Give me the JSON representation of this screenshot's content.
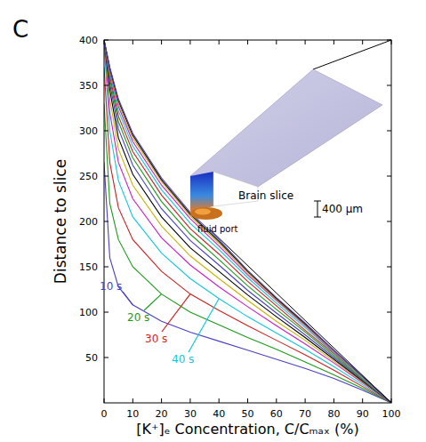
{
  "chart_data": {
    "type": "line",
    "panel_label": "C",
    "xlabel": "[K⁺]ₑ Concentration, C/Cₘₐₓ (%)",
    "ylabel": "Distance to slice",
    "annotations": [
      "Brain slice",
      "400 μm",
      "fluid port"
    ],
    "xlim": [
      0,
      100
    ],
    "ylim": [
      0,
      400
    ],
    "xticks": [
      0,
      10,
      20,
      30,
      40,
      50,
      60,
      70,
      80,
      90,
      100
    ],
    "yticks": [
      50,
      100,
      150,
      200,
      250,
      300,
      350,
      400
    ],
    "x": [
      0,
      2,
      5,
      10,
      20,
      30,
      40,
      50,
      60,
      70,
      80,
      90,
      100
    ],
    "series": [
      {
        "name": "10 s",
        "color": "#4b3fc4",
        "values": [
          265,
          160,
          128,
          108,
          90,
          78,
          68,
          58,
          48,
          38,
          27,
          14,
          0
        ]
      },
      {
        "name": "20 s",
        "color": "#1a9a1a",
        "values": [
          330,
          220,
          180,
          150,
          120,
          100,
          86,
          72,
          59,
          45,
          31,
          16,
          0
        ]
      },
      {
        "name": "30 s",
        "color": "#cc1f1f",
        "values": [
          370,
          265,
          215,
          180,
          145,
          120,
          102,
          85,
          69,
          53,
          36,
          18,
          0
        ]
      },
      {
        "name": "40 s",
        "color": "#10c8d8",
        "values": [
          395,
          300,
          245,
          205,
          165,
          137,
          115,
          95,
          77,
          59,
          40,
          20,
          0
        ]
      },
      {
        "color": "#c81fc8",
        "values": [
          400,
          320,
          265,
          225,
          182,
          152,
          128,
          106,
          85,
          65,
          44,
          22,
          0
        ]
      },
      {
        "color": "#c8b400",
        "values": [
          400,
          335,
          280,
          240,
          195,
          162,
          137,
          113,
          90,
          69,
          46,
          23,
          0
        ]
      },
      {
        "color": "#000000",
        "values": [
          400,
          345,
          292,
          252,
          205,
          171,
          145,
          119,
          95,
          72,
          48,
          24,
          0
        ]
      },
      {
        "color": "#4b3fc4",
        "values": [
          400,
          352,
          302,
          262,
          214,
          179,
          152,
          124,
          99,
          75,
          50,
          25,
          0
        ]
      },
      {
        "color": "#1a9a1a",
        "values": [
          400,
          357,
          310,
          270,
          222,
          186,
          158,
          129,
          103,
          78,
          52,
          26,
          0
        ]
      },
      {
        "color": "#cc1f1f",
        "values": [
          400,
          361,
          316,
          277,
          229,
          192,
          164,
          134,
          107,
          80,
          54,
          27,
          0
        ]
      },
      {
        "color": "#10c8d8",
        "values": [
          400,
          364,
          322,
          283,
          235,
          198,
          169,
          138,
          110,
          83,
          55,
          27,
          0
        ]
      },
      {
        "color": "#c81fc8",
        "values": [
          400,
          366,
          327,
          288,
          240,
          203,
          173,
          141,
          113,
          85,
          56,
          28,
          0
        ]
      },
      {
        "color": "#c8b400",
        "values": [
          400,
          368,
          330,
          292,
          244,
          206,
          176,
          143,
          114,
          86,
          57,
          28,
          0
        ]
      },
      {
        "color": "#000000",
        "values": [
          400,
          369,
          333,
          295,
          246,
          208,
          178,
          145,
          115,
          87,
          58,
          29,
          0
        ]
      },
      {
        "color": "#4b3fc4",
        "values": [
          400,
          370,
          335,
          297,
          248,
          210,
          180,
          146,
          116,
          88,
          58,
          29,
          0
        ]
      }
    ]
  }
}
